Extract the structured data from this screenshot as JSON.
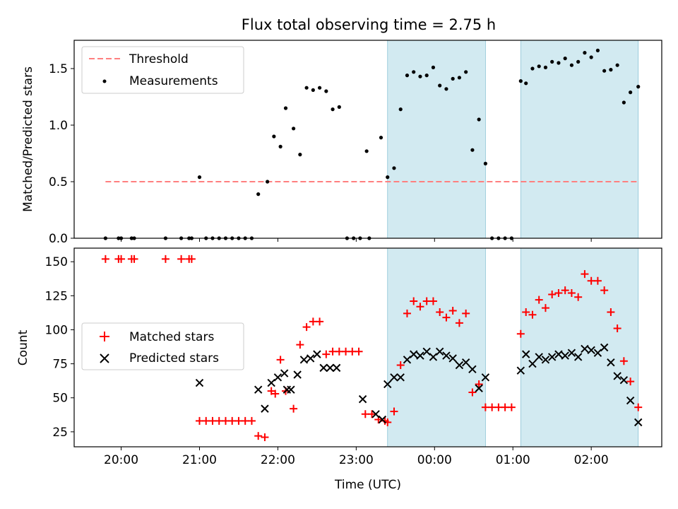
{
  "chart_data": [
    {
      "type": "scatter",
      "title": "Flux total observing time = 2.75 h",
      "xlabel": "",
      "ylabel": "Matched/Predicted stars",
      "xlim": [
        "19:24",
        "02:54"
      ],
      "ylim": [
        0,
        1.75
      ],
      "yticks": [
        "0.0",
        "0.5",
        "1.0",
        "1.5"
      ],
      "legend_position": "upper left",
      "shaded_intervals": [
        [
          "23:24",
          "00:39"
        ],
        [
          "01:06",
          "02:36"
        ]
      ],
      "colors": {
        "threshold": "#ff7f7f",
        "measurements": "#000000",
        "shade": "#add8e6"
      },
      "series": [
        {
          "name": "Threshold",
          "style": "dashed-line",
          "x": [
            "19:48",
            "02:36"
          ],
          "values": [
            0.5,
            0.5
          ]
        },
        {
          "name": "Measurements",
          "style": "dots",
          "x": [
            "19:48",
            "19:58",
            "20:00",
            "20:08",
            "20:10",
            "20:34",
            "20:46",
            "20:52",
            "20:54",
            "21:00",
            "21:05",
            "21:10",
            "21:15",
            "21:20",
            "21:25",
            "21:30",
            "21:35",
            "21:40",
            "21:45",
            "21:52",
            "21:57",
            "22:02",
            "22:06",
            "22:12",
            "22:17",
            "22:22",
            "22:27",
            "22:32",
            "22:37",
            "22:42",
            "22:47",
            "22:53",
            "22:58",
            "23:03",
            "23:08",
            "23:10",
            "23:19",
            "23:24",
            "23:29",
            "23:34",
            "23:39",
            "23:44",
            "23:49",
            "23:54",
            "23:59",
            "00:04",
            "00:09",
            "00:14",
            "00:19",
            "00:24",
            "00:29",
            "00:34",
            "00:39",
            "00:44",
            "00:49",
            "00:54",
            "00:59",
            "01:06",
            "01:10",
            "01:15",
            "01:20",
            "01:25",
            "01:30",
            "01:35",
            "01:40",
            "01:45",
            "01:50",
            "01:55",
            "02:00",
            "02:05",
            "02:10",
            "02:15",
            "02:20",
            "02:25",
            "02:30",
            "02:36"
          ],
          "values": [
            0,
            0,
            0,
            0,
            0,
            0,
            0,
            0,
            0,
            0.54,
            0,
            0,
            0,
            0,
            0,
            0,
            0,
            0,
            0.39,
            0.5,
            0.9,
            0.81,
            1.15,
            0.97,
            0.74,
            1.33,
            1.31,
            1.33,
            1.3,
            1.14,
            1.16,
            0,
            0,
            0,
            0.77,
            0,
            0.89,
            0.54,
            0.62,
            1.14,
            1.44,
            1.47,
            1.43,
            1.44,
            1.51,
            1.35,
            1.32,
            1.41,
            1.42,
            1.47,
            0.78,
            1.05,
            0.66,
            0,
            0,
            0,
            0,
            1.39,
            1.37,
            1.5,
            1.52,
            1.51,
            1.56,
            1.55,
            1.59,
            1.53,
            1.56,
            1.64,
            1.6,
            1.66,
            1.48,
            1.49,
            1.53,
            1.2,
            1.29,
            1.34
          ]
        }
      ]
    },
    {
      "type": "scatter",
      "title": "",
      "xlabel": "Time (UTC)",
      "ylabel": "Count",
      "xlim": [
        "19:24",
        "02:54"
      ],
      "ylim": [
        14,
        160
      ],
      "yticks": [
        "25",
        "50",
        "75",
        "100",
        "125",
        "150"
      ],
      "xticks": [
        "20:00",
        "21:00",
        "22:00",
        "23:00",
        "00:00",
        "01:00",
        "02:00"
      ],
      "legend_position": "center left",
      "shaded_intervals": [
        [
          "23:24",
          "00:39"
        ],
        [
          "01:06",
          "02:36"
        ]
      ],
      "colors": {
        "matched": "#ff0000",
        "predicted": "#000000",
        "shade": "#add8e6"
      },
      "series": [
        {
          "name": "Matched stars",
          "marker": "plus",
          "x": [
            "19:48",
            "19:58",
            "20:00",
            "20:08",
            "20:10",
            "20:34",
            "20:46",
            "20:52",
            "20:54",
            "21:00",
            "21:05",
            "21:10",
            "21:15",
            "21:20",
            "21:25",
            "21:30",
            "21:35",
            "21:40",
            "21:45",
            "21:50",
            "21:55",
            "21:58",
            "22:02",
            "22:06",
            "22:12",
            "22:17",
            "22:22",
            "22:27",
            "22:32",
            "22:37",
            "22:42",
            "22:47",
            "22:52",
            "22:57",
            "23:02",
            "23:07",
            "23:12",
            "23:17",
            "23:22",
            "23:24",
            "23:29",
            "23:34",
            "23:39",
            "23:44",
            "23:49",
            "23:54",
            "23:59",
            "00:04",
            "00:09",
            "00:14",
            "00:19",
            "00:24",
            "00:29",
            "00:34",
            "00:39",
            "00:44",
            "00:49",
            "00:54",
            "00:59",
            "01:06",
            "01:10",
            "01:15",
            "01:20",
            "01:25",
            "01:30",
            "01:35",
            "01:40",
            "01:45",
            "01:50",
            "01:55",
            "02:00",
            "02:05",
            "02:10",
            "02:15",
            "02:20",
            "02:25",
            "02:30",
            "02:36"
          ],
          "values": [
            152,
            152,
            152,
            152,
            152,
            152,
            152,
            152,
            152,
            33,
            33,
            33,
            33,
            33,
            33,
            33,
            33,
            33,
            22,
            21,
            55,
            53,
            78,
            55,
            42,
            89,
            102,
            106,
            106,
            82,
            84,
            84,
            84,
            84,
            84,
            38,
            38,
            34,
            33,
            32,
            40,
            74,
            112,
            121,
            117,
            121,
            121,
            113,
            109,
            114,
            105,
            112,
            54,
            60,
            43,
            43,
            43,
            43,
            43,
            97,
            113,
            111,
            122,
            116,
            126,
            127,
            129,
            127,
            124,
            141,
            136,
            136,
            129,
            113,
            101,
            77,
            62,
            43
          ]
        },
        {
          "name": "Predicted stars",
          "marker": "x",
          "x": [
            "21:00",
            "21:45",
            "21:50",
            "21:55",
            "22:00",
            "22:05",
            "22:07",
            "22:10",
            "22:15",
            "22:20",
            "22:25",
            "22:30",
            "22:35",
            "22:40",
            "22:45",
            "23:05",
            "23:15",
            "23:20",
            "23:24",
            "23:29",
            "23:34",
            "23:39",
            "23:44",
            "23:49",
            "23:54",
            "23:59",
            "00:04",
            "00:09",
            "00:14",
            "00:19",
            "00:24",
            "00:29",
            "00:34",
            "00:39",
            "01:06",
            "01:10",
            "01:15",
            "01:20",
            "01:25",
            "01:30",
            "01:35",
            "01:40",
            "01:45",
            "01:50",
            "01:55",
            "02:00",
            "02:05",
            "02:10",
            "02:15",
            "02:20",
            "02:25",
            "02:30",
            "02:36"
          ],
          "values": [
            61,
            56,
            42,
            61,
            65,
            68,
            56,
            56,
            67,
            78,
            79,
            82,
            72,
            72,
            72,
            49,
            38,
            34,
            60,
            65,
            65,
            78,
            82,
            81,
            84,
            80,
            84,
            81,
            79,
            74,
            76,
            71,
            57,
            65,
            70,
            82,
            75,
            80,
            78,
            80,
            82,
            81,
            83,
            80,
            86,
            85,
            83,
            87,
            76,
            66,
            63,
            48,
            32
          ]
        }
      ]
    }
  ]
}
